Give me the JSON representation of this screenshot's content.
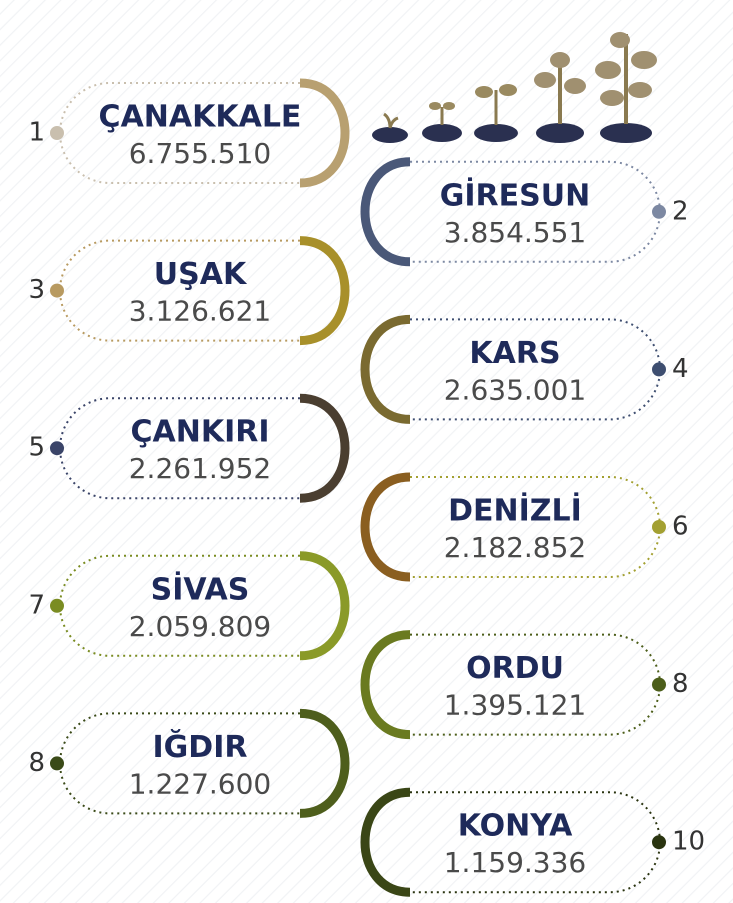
{
  "items": [
    {
      "rank": "1",
      "name": "ÇANAKKALE",
      "value": "6.755.510"
    },
    {
      "rank": "2",
      "name": "GİRESUN",
      "value": "3.854.551"
    },
    {
      "rank": "3",
      "name": "UŞAK",
      "value": "3.126.621"
    },
    {
      "rank": "4",
      "name": "KARS",
      "value": "2.635.001"
    },
    {
      "rank": "5",
      "name": "ÇANKIRI",
      "value": "2.261.952"
    },
    {
      "rank": "6",
      "name": "DENİZLİ",
      "value": "2.182.852"
    },
    {
      "rank": "7",
      "name": "SİVAS",
      "value": "2.059.809"
    },
    {
      "rank": "8",
      "name": "ORDU",
      "value": "1.395.121"
    },
    {
      "rank": "8",
      "name": "IĞDIR",
      "value": "1.227.600"
    },
    {
      "rank": "10",
      "name": "KONYA",
      "value": "1.159.336"
    }
  ]
}
